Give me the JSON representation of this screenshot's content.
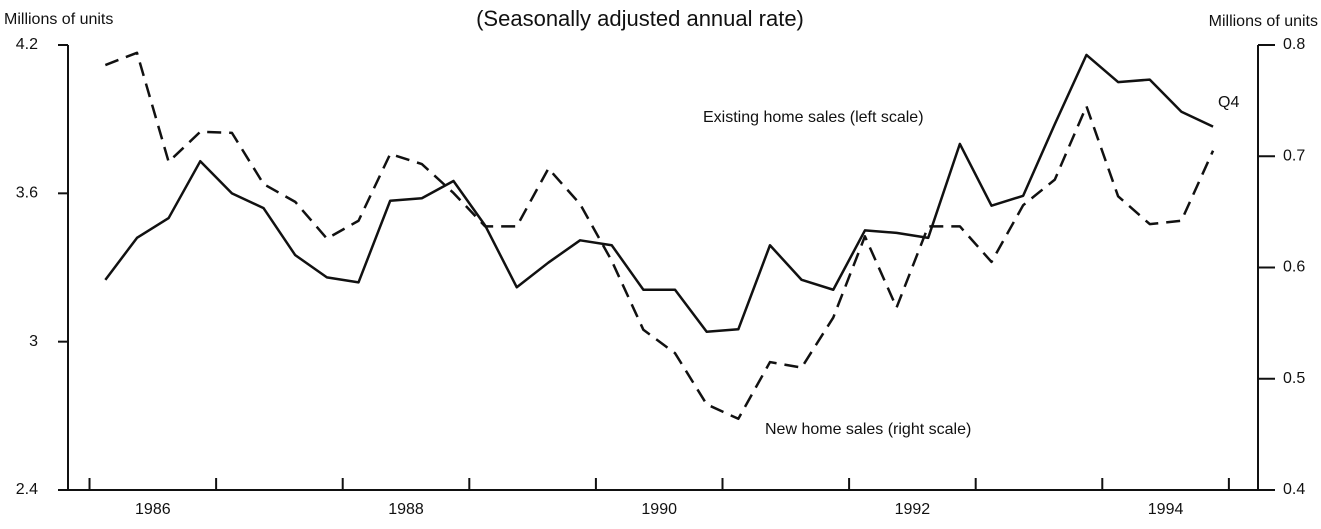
{
  "chart_data": {
    "type": "line",
    "subtitle": "(Seasonally adjusted annual rate)",
    "y_label": "Millions of units",
    "y2_label": "Millions of units",
    "x": [
      1986.125,
      1986.375,
      1986.625,
      1986.875,
      1987.125,
      1987.375,
      1987.625,
      1987.875,
      1988.125,
      1988.375,
      1988.625,
      1988.875,
      1989.125,
      1989.375,
      1989.625,
      1989.875,
      1990.125,
      1990.375,
      1990.625,
      1990.875,
      1991.125,
      1991.375,
      1991.625,
      1991.875,
      1992.125,
      1992.375,
      1992.625,
      1992.875,
      1993.125,
      1993.375,
      1993.625,
      1993.875,
      1994.125,
      1994.375,
      1994.625,
      1994.875
    ],
    "series": [
      {
        "name": "Existing home sales (left scale)",
        "color": "#111111",
        "dash": false,
        "values": [
          3.25,
          3.42,
          3.5,
          3.73,
          3.6,
          3.54,
          3.35,
          3.26,
          3.24,
          3.57,
          3.58,
          3.65,
          3.47,
          3.22,
          3.32,
          3.41,
          3.39,
          3.21,
          3.21,
          3.04,
          3.05,
          3.39,
          3.25,
          3.21,
          3.45,
          3.44,
          3.42,
          3.8,
          3.55,
          3.59,
          3.88,
          4.16,
          4.05,
          4.06,
          3.93,
          3.87
        ]
      },
      {
        "name": "New home sales (right scale)",
        "color": "#111111",
        "dash": true,
        "axis": "y2",
        "values": [
          0.782,
          0.793,
          0.695,
          0.722,
          0.721,
          0.675,
          0.659,
          0.626,
          0.642,
          0.702,
          0.693,
          0.667,
          0.637,
          0.637,
          0.689,
          0.657,
          0.606,
          0.544,
          0.523,
          0.477,
          0.464,
          0.515,
          0.51,
          0.555,
          0.628,
          0.564,
          0.637,
          0.637,
          0.605,
          0.656,
          0.679,
          0.745,
          0.664,
          0.639,
          0.642,
          0.705
        ]
      }
    ],
    "annotations": [
      "Q4"
    ],
    "xlim": [
      1985.83,
      1995.23
    ],
    "xticks": [
      {
        "value": 1986.5,
        "label": "1986"
      },
      {
        "value": 1988.5,
        "label": "1988"
      },
      {
        "value": 1990.5,
        "label": "1990"
      },
      {
        "value": 1992.5,
        "label": "1992"
      },
      {
        "value": 1994.5,
        "label": "1994"
      }
    ],
    "x_minor_ticks": [
      1986,
      1987,
      1988,
      1989,
      1990,
      1991,
      1992,
      1993,
      1994,
      1995
    ],
    "ylim": [
      2.4,
      4.2
    ],
    "yticks": [
      2.4,
      3,
      3.6,
      4.2
    ],
    "y2lim": [
      0.4,
      0.8
    ],
    "y2ticks": [
      0.4,
      0.5,
      0.6,
      0.7,
      0.8
    ],
    "grid": false
  }
}
